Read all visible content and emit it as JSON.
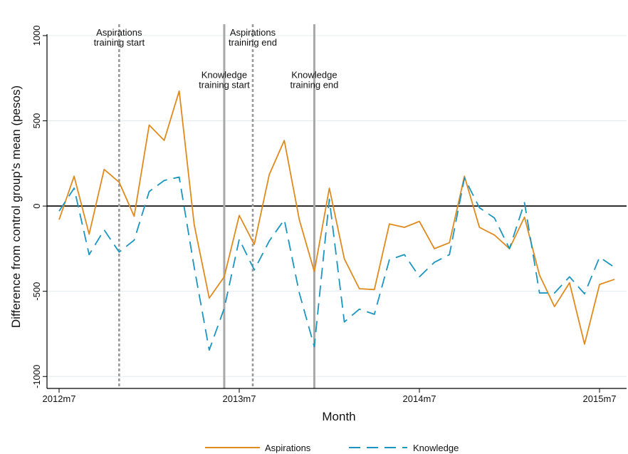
{
  "chart_data": {
    "type": "line",
    "xlabel": "Month",
    "ylabel": "Difference from control group's mean (pesos)",
    "xlim": [
      0,
      37.8
    ],
    "ylim": [
      -1070,
      1050
    ],
    "y_ticks": [
      -1000,
      -500,
      0,
      500,
      1000
    ],
    "x_ticks": [
      {
        "value": 0,
        "label": "2012m7"
      },
      {
        "value": 12,
        "label": "2013m7"
      },
      {
        "value": 24,
        "label": "2014m7"
      },
      {
        "value": 36,
        "label": "2015m7"
      }
    ],
    "grid": true,
    "zero_line": true,
    "legend_position": "bottom",
    "vertical_lines": [
      {
        "x": 4,
        "style": "dotted",
        "color": "#9a9a9a",
        "label_lines": [
          "Aspirations",
          "training start"
        ],
        "label_y": 1000
      },
      {
        "x": 11,
        "style": "solid",
        "color": "#a8a8a8",
        "label_lines": [
          "Knowledge",
          "training start"
        ],
        "label_y": 750
      },
      {
        "x": 12.9,
        "style": "dotted",
        "color": "#9a9a9a",
        "label_lines": [
          "Aspirations",
          "training end"
        ],
        "label_y": 1000
      },
      {
        "x": 17,
        "style": "solid",
        "color": "#a8a8a8",
        "label_lines": [
          "Knowledge",
          "training end"
        ],
        "label_y": 750
      }
    ],
    "series": [
      {
        "name": "Aspirations",
        "color": "#e08a1e",
        "dash": "solid",
        "x": [
          0,
          1,
          2,
          3,
          4,
          5,
          6,
          7,
          8,
          9,
          10,
          11,
          12,
          13,
          14,
          15,
          16,
          17,
          18,
          19,
          20,
          21,
          22,
          23,
          24,
          25,
          26,
          27,
          28,
          29,
          30,
          31,
          32,
          33,
          34,
          35,
          36,
          37
        ],
        "values": [
          -80,
          175,
          -165,
          215,
          140,
          -60,
          475,
          385,
          675,
          -110,
          -540,
          -415,
          -55,
          -225,
          185,
          385,
          -80,
          -385,
          105,
          -310,
          -485,
          -490,
          -105,
          -125,
          -90,
          -250,
          -215,
          175,
          -125,
          -170,
          -250,
          -65,
          -405,
          -590,
          -450,
          -810,
          -460,
          -430
        ]
      },
      {
        "name": "Knowledge",
        "color": "#1a96c0",
        "dash": "dashed",
        "x": [
          0,
          1,
          2,
          3,
          4,
          5,
          6,
          7,
          8,
          9,
          10,
          11,
          12,
          13,
          14,
          15,
          16,
          17,
          18,
          19,
          20,
          21,
          22,
          23,
          24,
          25,
          26,
          27,
          28,
          29,
          30,
          31,
          32,
          33,
          34,
          35,
          36,
          37
        ],
        "values": [
          -30,
          105,
          -285,
          -140,
          -270,
          -200,
          85,
          150,
          170,
          -360,
          -845,
          -600,
          -195,
          -375,
          -205,
          -80,
          -510,
          -825,
          40,
          -680,
          -605,
          -635,
          -315,
          -285,
          -415,
          -330,
          -285,
          165,
          -10,
          -70,
          -250,
          20,
          -510,
          -510,
          -415,
          -515,
          -300,
          -360
        ]
      }
    ]
  }
}
